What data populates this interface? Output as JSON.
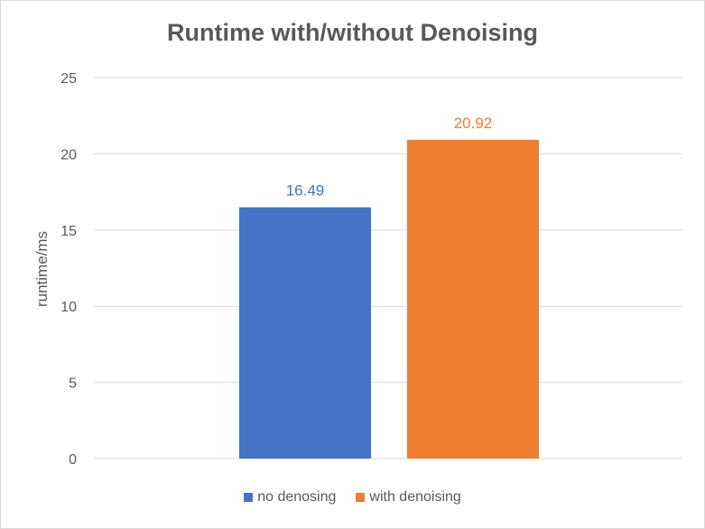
{
  "chart_data": {
    "type": "bar",
    "title": "Runtime with/without Denoising",
    "xlabel": "",
    "ylabel": "runtime/ms",
    "ylim": [
      0,
      25
    ],
    "yticks": [
      0,
      5,
      10,
      15,
      20,
      25
    ],
    "grid": true,
    "legend_position": "bottom",
    "series": [
      {
        "name": "no denosing",
        "values": [
          16.49
        ],
        "color": "#4472c4",
        "label": "16.49"
      },
      {
        "name": "with denoising",
        "values": [
          20.92
        ],
        "color": "#ed7d31",
        "label": "20.92"
      }
    ]
  }
}
